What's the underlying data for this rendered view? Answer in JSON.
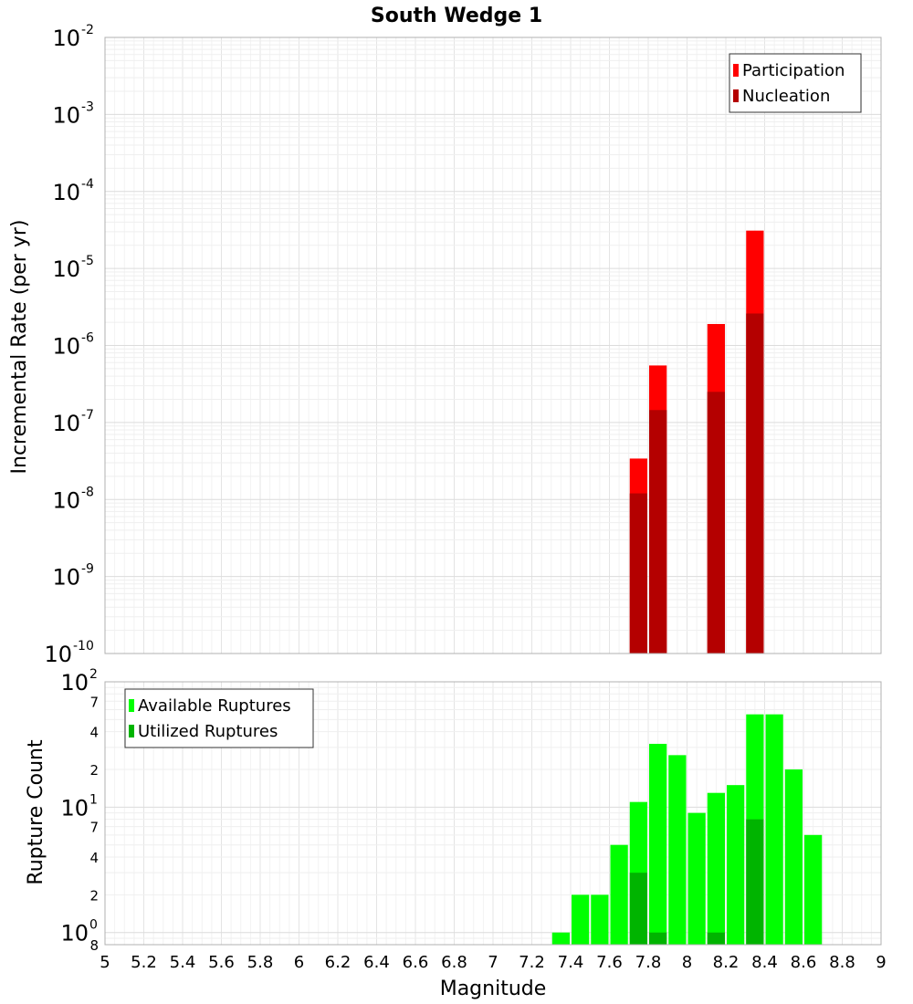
{
  "chart_data": [
    {
      "type": "bar",
      "title": "South Wedge 1",
      "xlabel": "Magnitude",
      "ylabel": "Incremental Rate (per yr)",
      "xlim": [
        5,
        9
      ],
      "ylim": [
        1e-10,
        0.01
      ],
      "y_scale": "log",
      "bar_width": 0.1,
      "grid": true,
      "legend_position": "top-right",
      "y_ticks": [
        {
          "base": "10",
          "exp": "-10",
          "value": 1e-10
        },
        {
          "base": "10",
          "exp": "-9",
          "value": 1e-09
        },
        {
          "base": "10",
          "exp": "-8",
          "value": 1e-08
        },
        {
          "base": "10",
          "exp": "-7",
          "value": 1e-07
        },
        {
          "base": "10",
          "exp": "-6",
          "value": 1e-06
        },
        {
          "base": "10",
          "exp": "-5",
          "value": 1e-05
        },
        {
          "base": "10",
          "exp": "-4",
          "value": 0.0001
        },
        {
          "base": "10",
          "exp": "-3",
          "value": 0.001
        },
        {
          "base": "10",
          "exp": "-2",
          "value": 0.01
        }
      ],
      "series": [
        {
          "name": "Participation",
          "color": "#ff0000",
          "x": [
            7.75,
            7.85,
            8.15,
            8.35
          ],
          "values": [
            3.4e-08,
            5.5e-07,
            1.9e-06,
            3.1e-05
          ]
        },
        {
          "name": "Nucleation",
          "color": "#b40000",
          "x": [
            7.75,
            7.85,
            8.15,
            8.35
          ],
          "values": [
            1.2e-08,
            1.45e-07,
            2.5e-07,
            2.6e-06
          ]
        }
      ]
    },
    {
      "type": "bar",
      "xlabel": "Magnitude",
      "ylabel": "Rupture Count",
      "xlim": [
        5,
        9
      ],
      "ylim": [
        0.8,
        100
      ],
      "y_scale": "log",
      "bar_width": 0.1,
      "grid": true,
      "legend_position": "top-left",
      "x_ticks": [
        "5",
        "5.2",
        "5.4",
        "5.6",
        "5.8",
        "6",
        "6.2",
        "6.4",
        "6.6",
        "6.8",
        "7",
        "7.2",
        "7.4",
        "7.6",
        "7.8",
        "8",
        "8.2",
        "8.4",
        "8.6",
        "8.8",
        "9"
      ],
      "y_ticks": [
        {
          "base": "10",
          "exp": "0",
          "value": 1
        },
        {
          "base": "10",
          "exp": "1",
          "value": 10
        },
        {
          "base": "10",
          "exp": "2",
          "value": 100
        }
      ],
      "y_minor_labels": [
        {
          "label": "8",
          "value": 0.8
        },
        {
          "label": "2",
          "value": 2
        },
        {
          "label": "4",
          "value": 4
        },
        {
          "label": "7",
          "value": 7
        },
        {
          "label": "2",
          "value": 20
        },
        {
          "label": "4",
          "value": 40
        },
        {
          "label": "7",
          "value": 70
        }
      ],
      "series": [
        {
          "name": "Available Ruptures",
          "color": "#00ff00",
          "x": [
            7.35,
            7.45,
            7.55,
            7.65,
            7.75,
            7.85,
            7.95,
            8.05,
            8.15,
            8.25,
            8.35,
            8.45,
            8.55,
            8.65
          ],
          "values": [
            1,
            2,
            2,
            5,
            11,
            32,
            26,
            9,
            13,
            15,
            55,
            55,
            20,
            6
          ]
        },
        {
          "name": "Utilized Ruptures",
          "color": "#00b400",
          "x": [
            7.75,
            7.85,
            8.15,
            8.35
          ],
          "values": [
            3,
            1,
            1,
            8
          ]
        }
      ]
    }
  ]
}
